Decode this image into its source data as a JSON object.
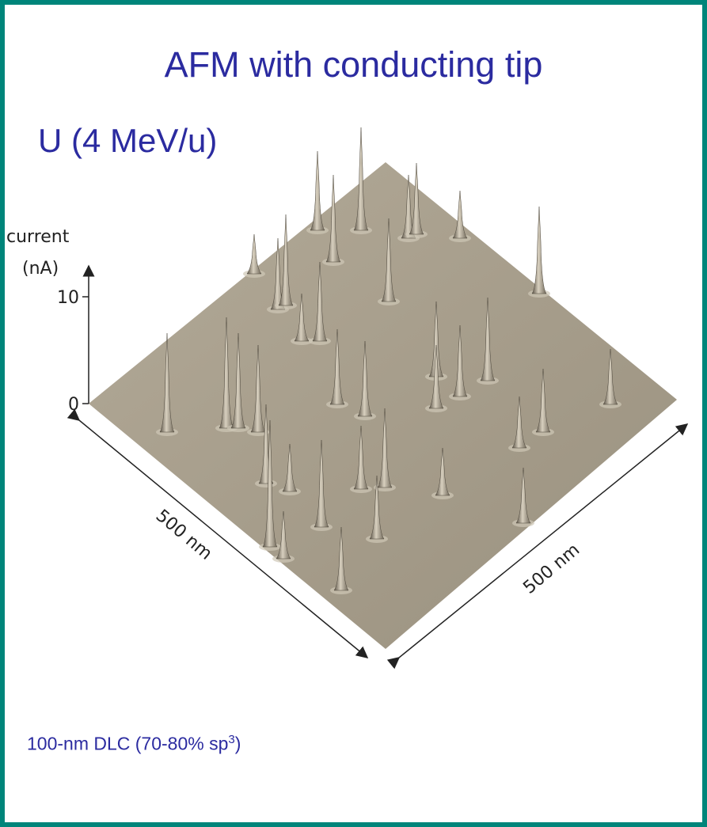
{
  "slide": {
    "title": "AFM with conducting tip",
    "subtitle": "U (4 MeV/u)",
    "figure": {
      "axis_label_line1": "current",
      "axis_label_line2": "(nA)",
      "tick_upper": "10",
      "tick_lower": "0",
      "left_edge_label": "500 nm",
      "right_edge_label": "500 nm"
    },
    "caption": {
      "text": "100-nm DLC (70-80% sp",
      "superscript": "3",
      "closing": ")"
    }
  }
}
